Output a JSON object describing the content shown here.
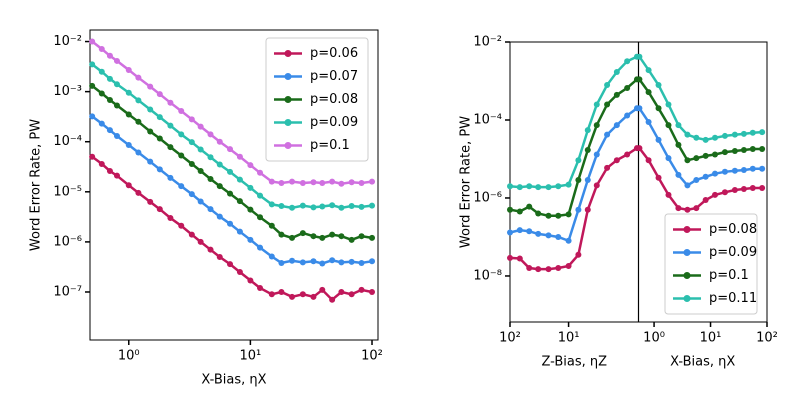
{
  "chart_data": [
    {
      "type": "line",
      "xscale": "log",
      "yscale": "log",
      "legend": "upper right",
      "xlabel": "X-Bias, ηX",
      "ylabel": "Word Error Rate, PW",
      "xlim": [
        0.48,
        112
      ],
      "ylim": [
        1.1e-08,
        0.017
      ],
      "xticks": [
        {
          "value": 1,
          "label": "10⁰"
        },
        {
          "value": 10,
          "label": "10¹"
        },
        {
          "value": 100,
          "label": "10²"
        }
      ],
      "yticks": [
        {
          "value": 1e-07,
          "label": "10⁻⁷"
        },
        {
          "value": 1e-06,
          "label": "10⁻⁶"
        },
        {
          "value": 1e-05,
          "label": "10⁻⁵"
        },
        {
          "value": 0.0001,
          "label": "10⁻⁴"
        },
        {
          "value": 0.001,
          "label": "10⁻³"
        },
        {
          "value": 0.01,
          "label": "10⁻²"
        }
      ],
      "x": [
        0.5,
        0.6,
        0.7,
        0.8,
        1,
        1.2,
        1.5,
        1.8,
        2.2,
        2.7,
        3.3,
        3.9,
        4.7,
        5.6,
        6.8,
        8.2,
        10,
        12,
        15,
        18,
        22,
        27,
        33,
        39,
        47,
        56,
        68,
        82,
        100
      ],
      "series": [
        {
          "name": "p=0.06",
          "color": "#c0185a",
          "values": [
            5e-05,
            3.6e-05,
            2.6e-05,
            2.1e-05,
            1.35e-05,
            9.5e-06,
            6.3e-06,
            4.5e-06,
            3e-06,
            2.1e-06,
            1.4e-06,
            1e-06,
            7e-07,
            5e-07,
            3.6e-07,
            2.5e-07,
            1.7e-07,
            1.2e-07,
            9e-08,
            1e-07,
            8e-08,
            9e-08,
            8e-08,
            1.1e-07,
            7e-08,
            1e-07,
            9e-08,
            1.1e-07,
            1e-07
          ]
        },
        {
          "name": "p=0.07",
          "color": "#3a8be8",
          "values": [
            0.00032,
            0.00023,
            0.00017,
            0.00013,
            8.6e-05,
            6.1e-05,
            4e-05,
            2.8e-05,
            1.9e-05,
            1.3e-05,
            9e-06,
            6.4e-06,
            4.5e-06,
            3.2e-06,
            2.3e-06,
            1.6e-06,
            1.1e-06,
            7.7e-07,
            5.1e-07,
            3.8e-07,
            4.2e-07,
            3.9e-07,
            4.1e-07,
            3.7e-07,
            4.3e-07,
            3.9e-07,
            4e-07,
            3.8e-07,
            4.1e-07
          ]
        },
        {
          "name": "p=0.08",
          "color": "#1a6b1a",
          "values": [
            0.0013,
            0.00092,
            0.00068,
            0.00053,
            0.00035,
            0.00025,
            0.00016,
            0.000116,
            7.8e-05,
            5.3e-05,
            3.6e-05,
            2.6e-05,
            1.8e-05,
            1.3e-05,
            9.2e-06,
            6.5e-06,
            4.4e-06,
            3.1e-06,
            2.1e-06,
            1.4e-06,
            1.2e-06,
            1.5e-06,
            1.3e-06,
            1.2e-06,
            1.4e-06,
            1.3e-06,
            1.1e-06,
            1.3e-06,
            1.2e-06
          ]
        },
        {
          "name": "p=0.09",
          "color": "#2bbfae",
          "values": [
            0.0035,
            0.0025,
            0.0018,
            0.0014,
            0.00095,
            0.00067,
            0.00044,
            0.00031,
            0.00021,
            0.00014,
            9.8e-05,
            7e-05,
            4.9e-05,
            3.5e-05,
            2.5e-05,
            1.75e-05,
            1.2e-05,
            8.4e-06,
            5.6e-06,
            5.2e-06,
            4.8e-06,
            5.3e-06,
            4.9e-06,
            5.1e-06,
            5.4e-06,
            4.8e-06,
            5.2e-06,
            5e-06,
            5.3e-06
          ]
        },
        {
          "name": "p=0.1",
          "color": "#d070e0",
          "values": [
            0.01,
            0.0071,
            0.0052,
            0.0041,
            0.0027,
            0.0019,
            0.00126,
            0.00089,
            0.0006,
            0.00041,
            0.00028,
            0.0002,
            0.00014,
            0.0001,
            7.1e-05,
            5e-05,
            3.4e-05,
            2.4e-05,
            1.6e-05,
            1.5e-05,
            1.6e-05,
            1.5e-05,
            1.55e-05,
            1.5e-05,
            1.6e-05,
            1.45e-05,
            1.55e-05,
            1.5e-05,
            1.6e-05
          ]
        }
      ]
    },
    {
      "type": "line",
      "xscale": "log",
      "yscale": "log",
      "legend": "lower right",
      "ylabel": "Word Error Rate, PW",
      "ylim": [
        6.6e-10,
        0.01
      ],
      "yticks": [
        {
          "value": 1e-08,
          "label": "10⁻⁸"
        },
        {
          "value": 1e-06,
          "label": "10⁻⁶"
        },
        {
          "value": 0.0001,
          "label": "10⁻⁴"
        },
        {
          "value": 0.01,
          "label": "10⁻²"
        }
      ],
      "series": [
        {
          "name": "p=0.08",
          "color": "#c0185a"
        },
        {
          "name": "p=0.09",
          "color": "#3a8be8"
        },
        {
          "name": "p=0.1",
          "color": "#1a6b1a"
        },
        {
          "name": "p=0.11",
          "color": "#2bbfae"
        }
      ],
      "panels": [
        {
          "xlabel": "Z-Bias, ηZ",
          "xlim": [
            100,
            0.64
          ],
          "xticks": [
            {
              "value": 100,
              "label": "10²"
            },
            {
              "value": 10,
              "label": "10¹"
            }
          ],
          "x": [
            100,
            68,
            47,
            33,
            22,
            15,
            10,
            6.8,
            4.7,
            3.3,
            2.2,
            1.5,
            1,
            0.68
          ],
          "values": [
            [
              2.9e-08,
              2.8e-08,
              1.6e-08,
              1.5e-08,
              1.5e-08,
              1.6e-08,
              1.8e-08,
              3.5e-08,
              5e-07,
              2.1e-06,
              5.9e-06,
              9.3e-06,
              1.3e-05,
              1.9e-05
            ],
            [
              1.3e-07,
              1.5e-07,
              1.4e-07,
              1.2e-07,
              1.1e-07,
              1e-07,
              8e-08,
              5e-07,
              2.9e-06,
              1.3e-05,
              4.2e-05,
              7.4e-05,
              0.00013,
              0.0002
            ],
            [
              5e-07,
              4.5e-07,
              6e-07,
              4e-07,
              3.5e-07,
              3.5e-07,
              3.8e-07,
              2.9e-06,
              1.7e-05,
              7.4e-05,
              0.00025,
              0.00044,
              0.00066,
              0.0011
            ],
            [
              2e-06,
              1.9e-06,
              2e-06,
              1.9e-06,
              1.9e-06,
              2e-06,
              2.2e-06,
              9.3e-06,
              5.5e-05,
              0.00025,
              0.00079,
              0.0017,
              0.0032,
              0.0042
            ]
          ]
        },
        {
          "xlabel": "X-Bias, ηX",
          "xlim": [
            0.53,
            100
          ],
          "xticks": [
            {
              "value": 1,
              "label": "10⁰"
            },
            {
              "value": 10,
              "label": "10¹"
            },
            {
              "value": 100,
              "label": "10²"
            }
          ],
          "x": [
            0.55,
            0.8,
            1.2,
            1.8,
            2.7,
            3.9,
            5.6,
            8.2,
            12,
            18,
            27,
            39,
            56,
            82
          ],
          "values": [
            [
              1.9e-05,
              9.3e-06,
              3.3e-06,
              1.2e-06,
              5.5e-07,
              5e-07,
              5.5e-07,
              8.9e-07,
              1.2e-06,
              1.4e-06,
              1.6e-06,
              1.7e-06,
              1.8e-06,
              1.8e-06
            ],
            [
              0.0002,
              8.9e-05,
              3.1e-05,
              1.05e-05,
              3.9e-06,
              2.1e-06,
              2.9e-06,
              3.5e-06,
              4.2e-06,
              4.7e-06,
              5e-06,
              5.2e-06,
              5.6e-06,
              5.6e-06
            ],
            [
              0.0011,
              0.00052,
              0.0002,
              7.4e-05,
              2.3e-05,
              9.3e-06,
              1.05e-05,
              1.2e-05,
              1.3e-05,
              1.5e-05,
              1.6e-05,
              1.7e-05,
              1.8e-05,
              1.8e-05
            ],
            [
              0.0042,
              0.0019,
              0.00079,
              0.00025,
              7.4e-05,
              4.2e-05,
              3.5e-05,
              3.1e-05,
              3.5e-05,
              3.9e-05,
              4.2e-05,
              4.4e-05,
              4.7e-05,
              4.9e-05
            ]
          ]
        }
      ]
    }
  ]
}
